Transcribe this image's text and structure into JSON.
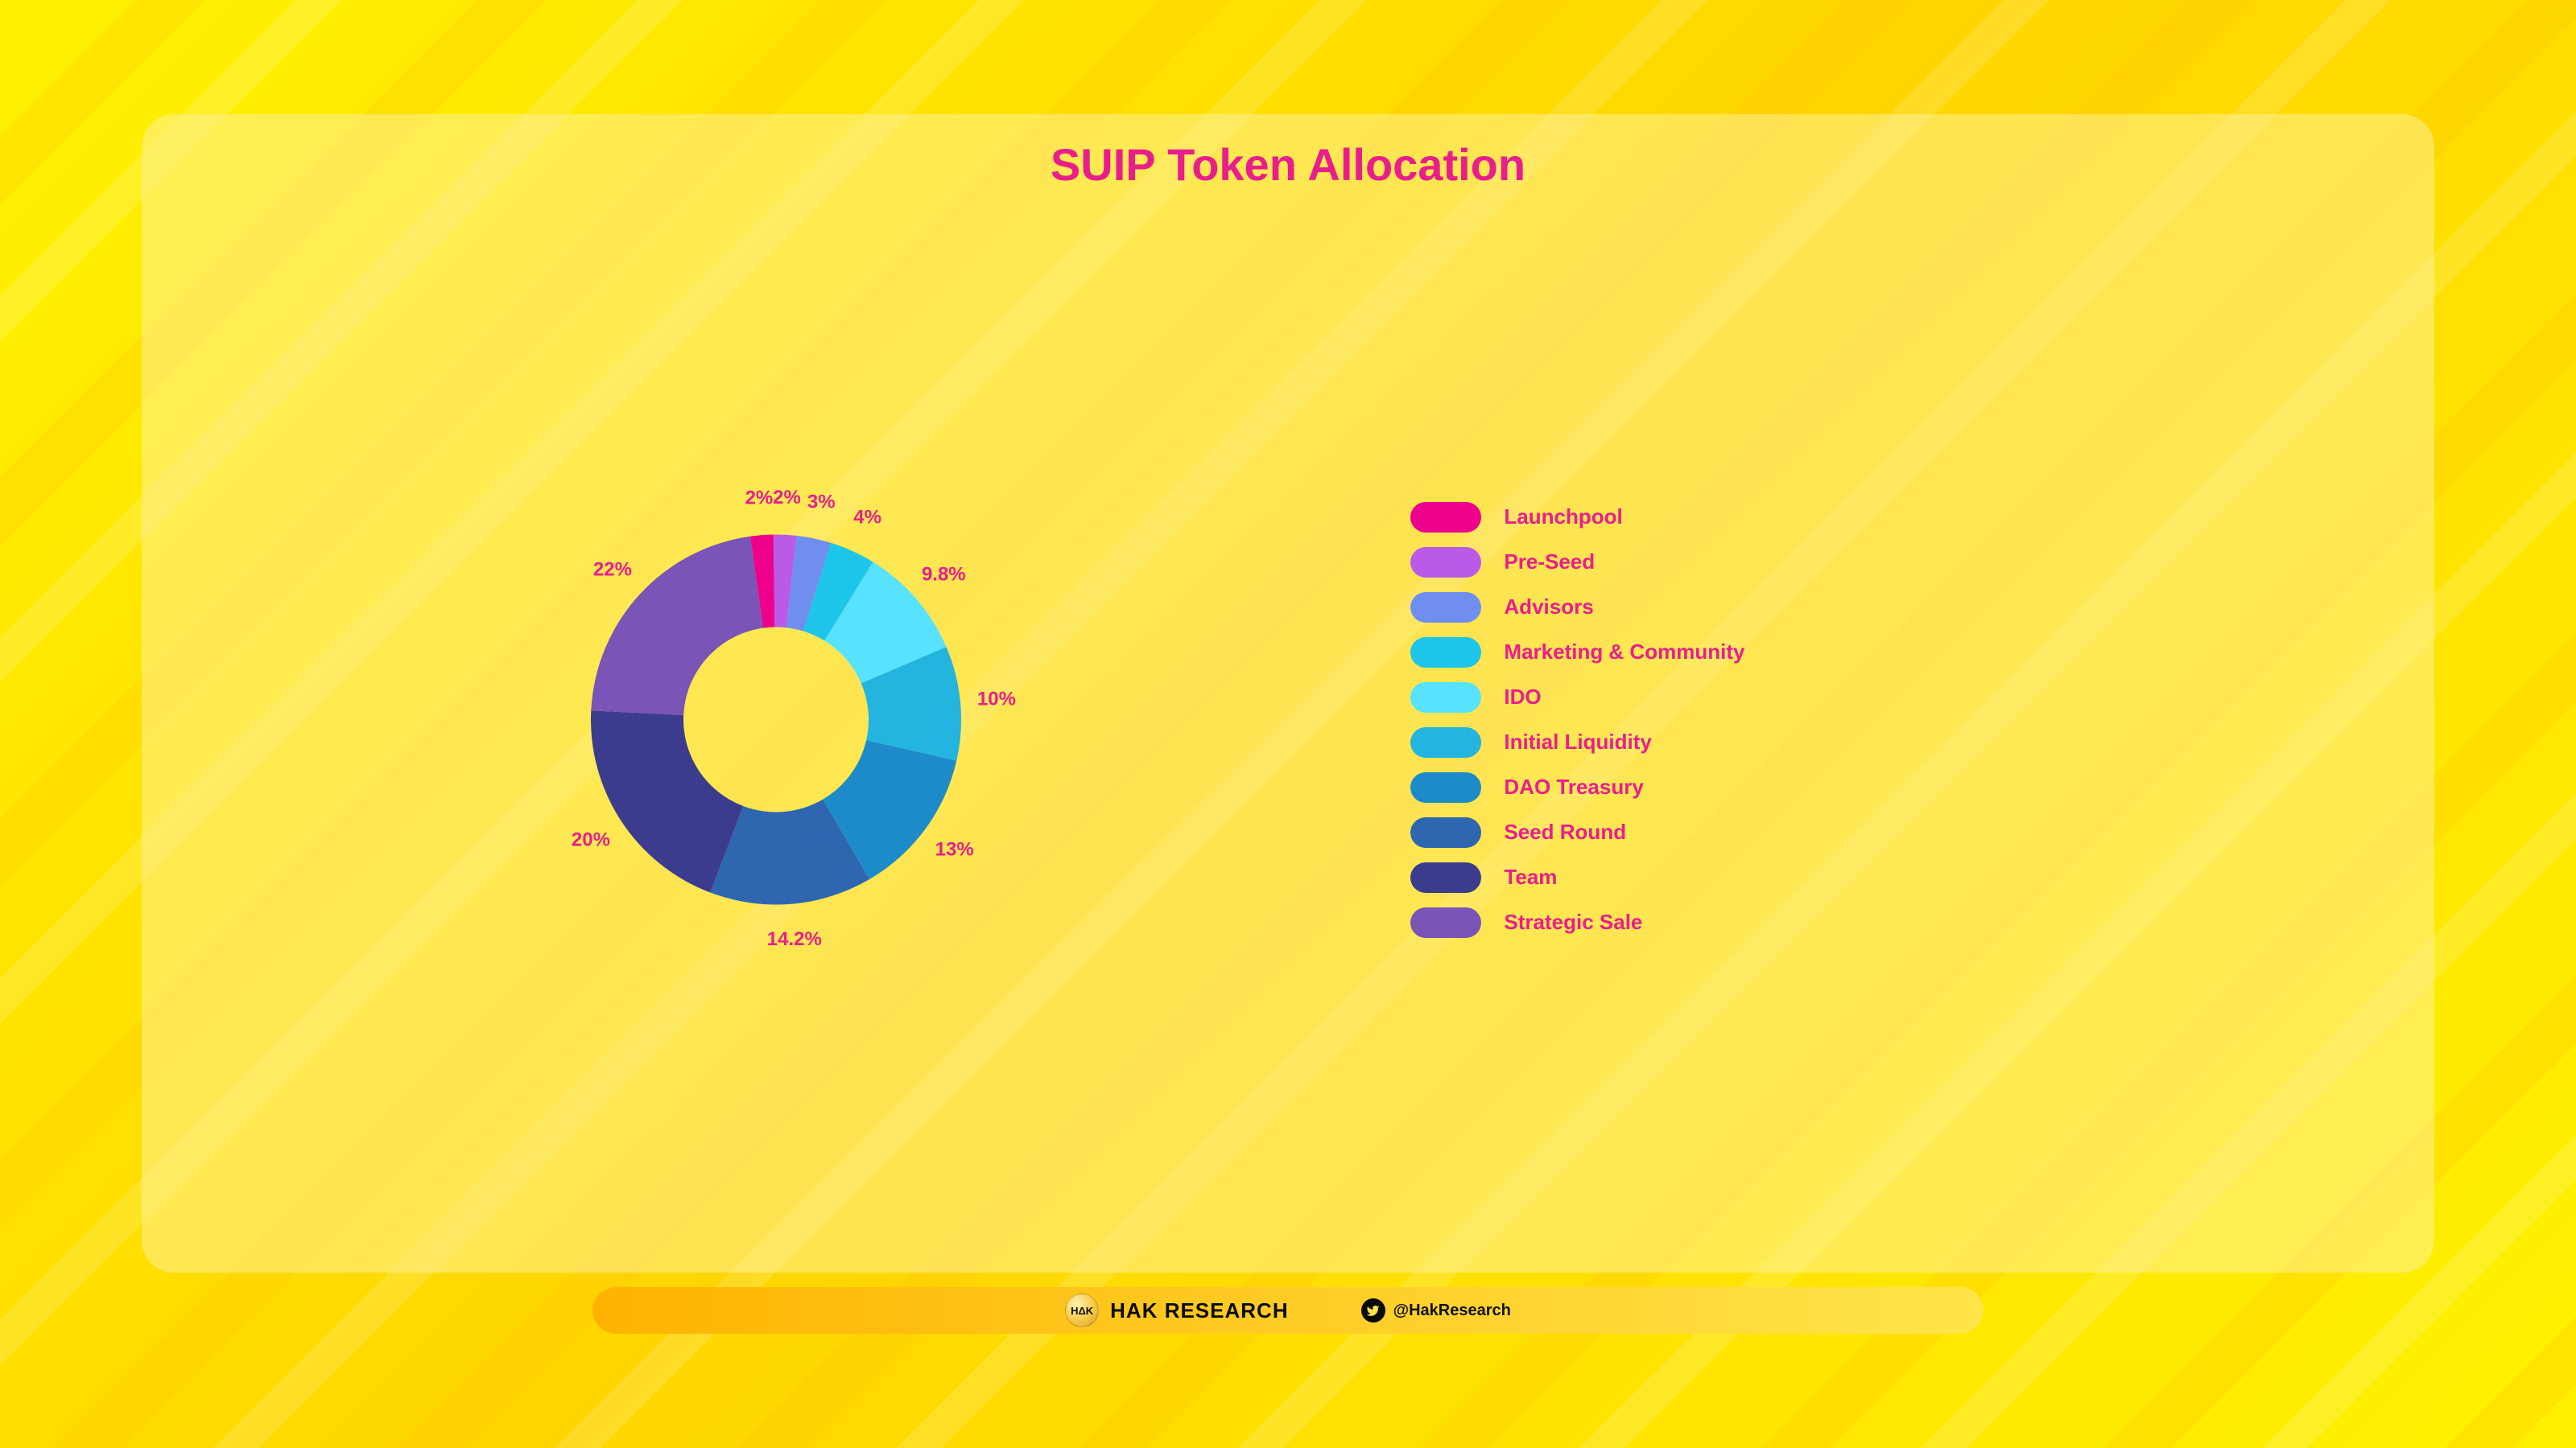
{
  "title": "SUIP Token Allocation",
  "chart": {
    "type": "donut",
    "inner_radius_pct": 0.5,
    "outer_radius_pct": 1.0,
    "start_angle_deg": -8,
    "direction": "clockwise",
    "background_color": "transparent",
    "label_color": "#e91e8c",
    "label_fontsize": 24,
    "label_fontweight": 800,
    "segments": [
      {
        "label": "Launchpool",
        "value": 2.0,
        "display": "2%",
        "color": "#ec008c"
      },
      {
        "label": "Pre-Seed",
        "value": 2.0,
        "display": "2%",
        "color": "#b95be8"
      },
      {
        "label": "Advisors",
        "value": 3.0,
        "display": "3%",
        "color": "#6f8ef0"
      },
      {
        "label": "Marketing & Community",
        "value": 4.0,
        "display": "4%",
        "color": "#1ec5ea"
      },
      {
        "label": "IDO",
        "value": 9.8,
        "display": "9.8%",
        "color": "#57e3ff"
      },
      {
        "label": "Initial Liquidity",
        "value": 10.0,
        "display": "10%",
        "color": "#23b4e0"
      },
      {
        "label": "DAO Treasury",
        "value": 13.0,
        "display": "13%",
        "color": "#1d8bc9"
      },
      {
        "label": "Seed Round",
        "value": 14.2,
        "display": "14.2%",
        "color": "#2f66b0"
      },
      {
        "label": "Team",
        "value": 20.0,
        "display": "20%",
        "color": "#3c3c8f"
      },
      {
        "label": "Strategic Sale",
        "value": 22.0,
        "display": "22%",
        "color": "#7a54b7"
      }
    ]
  },
  "legend": {
    "swatch_width": 88,
    "swatch_height": 38,
    "swatch_radius": 19,
    "label_color": "#e91e8c",
    "label_fontsize": 26,
    "label_fontweight": 800
  },
  "footer": {
    "brand_logo_text": "HΔK",
    "brand_text": "HAK RESEARCH",
    "twitter_handle": "@HakResearch",
    "bar_gradient_from": "#ffb300",
    "bar_gradient_to": "#ffe54a"
  },
  "title_style": {
    "color": "#e91e8c",
    "fontsize": 56,
    "fontweight": 800
  },
  "page_background": {
    "type": "diagonal-yellow-gradient",
    "colors": [
      "#fff200",
      "#ffd500",
      "#ffc400"
    ]
  }
}
